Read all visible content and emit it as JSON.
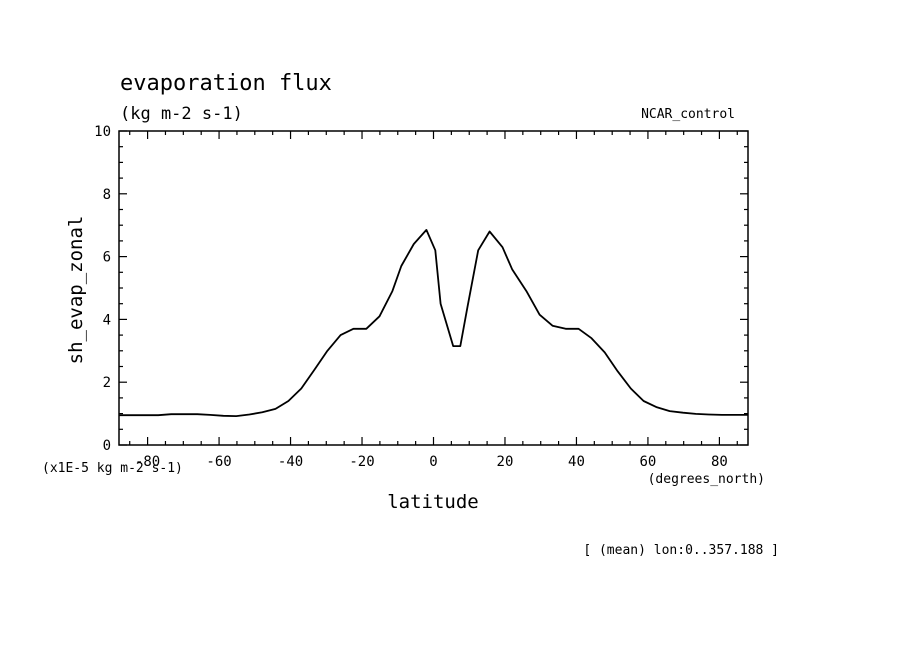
{
  "chart_data": {
    "type": "line",
    "title": "evaporation flux",
    "units": "(kg m-2 s-1)",
    "dataset_label": "NCAR_control",
    "ylabel": "sh_evap_zonal",
    "xlabel": "latitude",
    "y_scale_note": "(x1E-5 kg m-2 s-1)",
    "x_units_note": "(degrees_north)",
    "averaging_note": "[ (mean) lon:0..357.188 ]",
    "xlim": [
      -88,
      88
    ],
    "ylim": [
      0,
      10
    ],
    "x_ticks": [
      -80,
      -60,
      -40,
      -20,
      0,
      20,
      40,
      60,
      80
    ],
    "y_ticks": [
      0,
      2,
      4,
      6,
      8,
      10
    ],
    "x_tick_labels": [
      "-80",
      "-60",
      "-40",
      "-20",
      "0",
      "20",
      "40",
      "60",
      "80"
    ],
    "y_tick_labels": [
      "0",
      "2",
      "4",
      "6",
      "8",
      "10"
    ],
    "grid": false,
    "series": [
      {
        "x": [
          -88,
          -84.4,
          -80.7,
          -77.0,
          -73.4,
          -69.8,
          -66.1,
          -62.5,
          -58.8,
          -55.2,
          -51.5,
          -47.9,
          -44.2,
          -40.6,
          -37.0,
          -33.3,
          -29.7,
          -26.0,
          -22.4,
          -18.8,
          -15.1,
          -11.5,
          -9.0,
          -5.5,
          -2.0,
          0.5,
          2.0,
          5.5,
          7.5,
          9.5,
          12.5,
          15.7,
          19.3,
          22.0,
          26.0,
          29.7,
          33.3,
          37.0,
          40.6,
          44.2,
          47.9,
          51.5,
          55.2,
          58.8,
          62.5,
          66.1,
          69.8,
          73.4,
          77.0,
          80.7,
          84.4,
          88
        ],
        "y": [
          0.95,
          0.95,
          0.95,
          0.95,
          0.98,
          0.98,
          0.98,
          0.96,
          0.93,
          0.92,
          0.97,
          1.04,
          1.15,
          1.4,
          1.8,
          2.4,
          3.0,
          3.5,
          3.7,
          3.7,
          4.1,
          4.9,
          5.7,
          6.4,
          6.85,
          6.2,
          4.5,
          3.15,
          3.15,
          4.4,
          6.2,
          6.8,
          6.3,
          5.6,
          4.9,
          4.15,
          3.8,
          3.7,
          3.7,
          3.4,
          2.95,
          2.35,
          1.8,
          1.4,
          1.2,
          1.08,
          1.03,
          0.99,
          0.97,
          0.96,
          0.96,
          0.96
        ]
      }
    ]
  }
}
